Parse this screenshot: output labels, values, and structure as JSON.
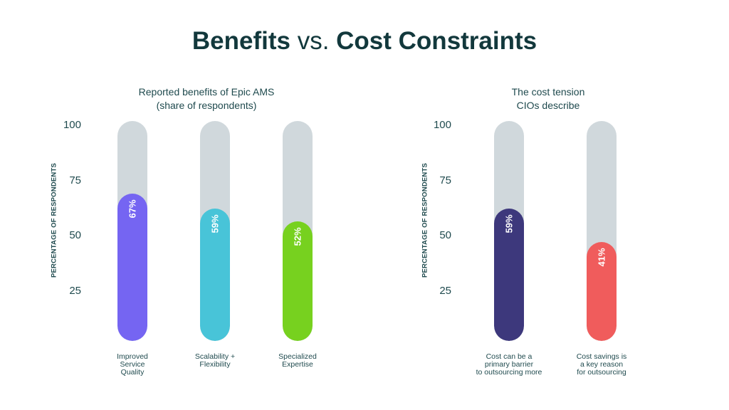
{
  "title": {
    "part1": "Benefits",
    "part2": " vs. ",
    "part3": "Cost Constraints"
  },
  "chart_data": [
    {
      "type": "bar",
      "title": "Reported benefits of Epic AMS (share of respondents)",
      "title_lines": [
        "Reported benefits of Epic AMS",
        "(share of respondents)"
      ],
      "ylabel": "PERCENTAGE OF RESPONDENTS",
      "ylim": [
        0,
        100
      ],
      "yticks": [
        "100",
        "75",
        "50",
        "25"
      ],
      "categories": [
        "Improved Service Quality",
        "Scalability + Flexibility",
        "Specialized Expertise"
      ],
      "category_lines": [
        [
          "Improved",
          "Service",
          "Quality"
        ],
        [
          "Scalability +",
          "Flexibility"
        ],
        [
          "Specialized",
          "Expertise"
        ]
      ],
      "values": [
        67,
        59,
        52
      ],
      "labels": [
        "67%",
        "59%",
        "52%"
      ],
      "colors": [
        "#7565f2",
        "#48c4d8",
        "#77d11f"
      ]
    },
    {
      "type": "bar",
      "title": "The cost tension CIOs describe",
      "title_lines": [
        "The cost tension",
        "CIOs describe"
      ],
      "ylabel": "PERCENTAGE OF RESPONDENTS",
      "ylim": [
        0,
        100
      ],
      "yticks": [
        "100",
        "75",
        "50",
        "25"
      ],
      "categories": [
        "Cost can be a primary barrier to outsourcing more",
        "Cost savings is a key reason for outsourcing"
      ],
      "category_lines": [
        [
          "Cost can be a",
          "primary barrier",
          "to outsourcing more"
        ],
        [
          "Cost savings is",
          "a key reason",
          "for outsourcing"
        ]
      ],
      "values": [
        59,
        41
      ],
      "labels": [
        "59%",
        "41%"
      ],
      "colors": [
        "#3d387c",
        "#f05c5c"
      ]
    }
  ]
}
